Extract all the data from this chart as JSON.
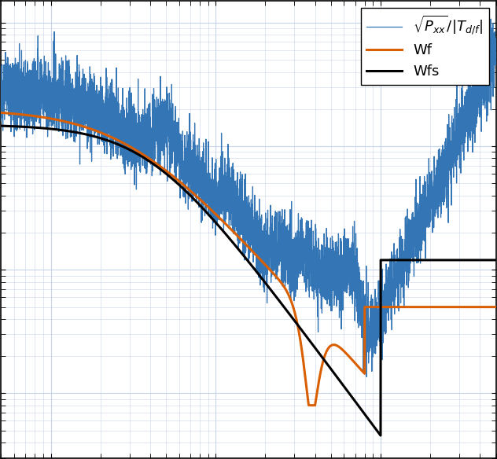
{
  "title": "",
  "xlabel": "",
  "ylabel": "",
  "xlim": [
    0.5,
    500
  ],
  "ylim": [
    0.0003,
    1.5
  ],
  "grid_color": "#c8d4e8",
  "bg_color": "#ffffff",
  "line1_color": "#3476b5",
  "line2_color": "#d95f02",
  "line3_color": "#000000",
  "legend_labels": [
    "$\\sqrt{P_{xx}}/|T_{d/f}|$",
    "Wf",
    "Wfs"
  ],
  "legend_loc": "upper right",
  "legend_fontsize": 13
}
